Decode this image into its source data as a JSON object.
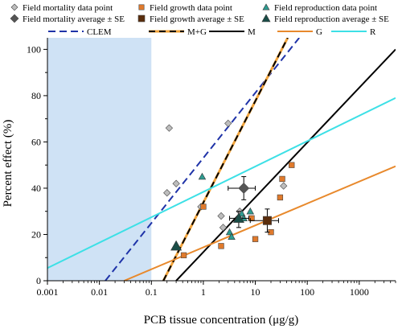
{
  "chart_data": {
    "type": "scatter",
    "xlabel": "PCB tissue concentration (μg/g)",
    "ylabel": "Percent effect (%)",
    "xscale": "log",
    "xlim": [
      0.001,
      5000
    ],
    "ylim": [
      0,
      105
    ],
    "x_ticks": [
      0.001,
      0.01,
      0.1,
      1,
      10,
      100,
      1000
    ],
    "x_tick_labels": [
      "0.001",
      "0.01",
      "0.1",
      "1",
      "10",
      "100",
      "1000"
    ],
    "y_ticks": [
      0,
      20,
      40,
      60,
      80,
      100
    ],
    "y_tick_labels": [
      "0",
      "20",
      "40",
      "60",
      "80",
      "100"
    ],
    "grid": false,
    "shaded_region": {
      "x": [
        0.001,
        0.1
      ],
      "color": "#cfe2f5"
    },
    "legend_placement": "top",
    "series": [
      {
        "name": "Field mortality data point",
        "kind": "points",
        "marker": "diamond",
        "color": "#bdbdbd",
        "points": [
          [
            0.22,
            66
          ],
          [
            0.2,
            38
          ],
          [
            0.3,
            42
          ],
          [
            3,
            68
          ],
          [
            0.9,
            32
          ],
          [
            2.2,
            28
          ],
          [
            2.4,
            23
          ],
          [
            5,
            30
          ],
          [
            35,
            41
          ],
          [
            4.8,
            27
          ]
        ]
      },
      {
        "name": "Field mortality average ± SE",
        "kind": "average",
        "marker": "diamond",
        "color": "#555555",
        "points": [
          {
            "x": 6,
            "y": 40,
            "xlow": 3,
            "xhigh": 10,
            "ylow": 35,
            "yhigh": 45
          }
        ]
      },
      {
        "name": "Field growth data point",
        "kind": "points",
        "marker": "square",
        "color": "#e07a2c",
        "points": [
          [
            0.42,
            11
          ],
          [
            1,
            32
          ],
          [
            2.2,
            15
          ],
          [
            8.5,
            27
          ],
          [
            10,
            18
          ],
          [
            20,
            21
          ],
          [
            30,
            36
          ],
          [
            33,
            44
          ],
          [
            50,
            50
          ]
        ]
      },
      {
        "name": "Field growth average ± SE",
        "kind": "average",
        "marker": "square",
        "color": "#5a2d0c",
        "points": [
          {
            "x": 17,
            "y": 26,
            "xlow": 8,
            "xhigh": 28,
            "ylow": 21,
            "yhigh": 31
          }
        ]
      },
      {
        "name": "Field reproduction data point",
        "kind": "points",
        "marker": "triangle",
        "color": "#2e9c91",
        "points": [
          [
            0.95,
            45
          ],
          [
            3.2,
            21
          ],
          [
            3.5,
            19
          ],
          [
            5.5,
            29
          ],
          [
            6,
            27
          ],
          [
            8,
            30
          ]
        ]
      },
      {
        "name": "Field reproduction average ± SE",
        "kind": "average",
        "marker": "triangle",
        "color": "#1a4d47",
        "points": [
          {
            "x": 0.3,
            "y": 15,
            "xlow": null,
            "xhigh": null,
            "ylow": null,
            "yhigh": null
          },
          {
            "x": 4.8,
            "y": 27,
            "xlow": 3.2,
            "xhigh": 7.5,
            "ylow": 23,
            "yhigh": 30
          }
        ]
      },
      {
        "name": "CLEM",
        "kind": "line",
        "style": "dashed",
        "color": "#1f33a8",
        "points": [
          [
            0.013,
            0
          ],
          [
            70,
            105
          ]
        ]
      },
      {
        "name": "M+G",
        "kind": "line",
        "style": "dashed-double",
        "color": "#000000",
        "accent": "#f2a33a",
        "points": [
          [
            0.17,
            0
          ],
          [
            42,
            105
          ]
        ]
      },
      {
        "name": "M",
        "kind": "line",
        "style": "solid",
        "color": "#000000",
        "points": [
          [
            0.3,
            0
          ],
          [
            5000,
            100
          ]
        ]
      },
      {
        "name": "G",
        "kind": "line",
        "style": "solid",
        "color": "#e8892c",
        "points": [
          [
            0.03,
            0
          ],
          [
            5000,
            49.5
          ]
        ]
      },
      {
        "name": "R",
        "kind": "line",
        "style": "solid",
        "color": "#3de0e6",
        "points": [
          [
            0.001,
            5.5
          ],
          [
            5000,
            79
          ]
        ]
      }
    ]
  }
}
